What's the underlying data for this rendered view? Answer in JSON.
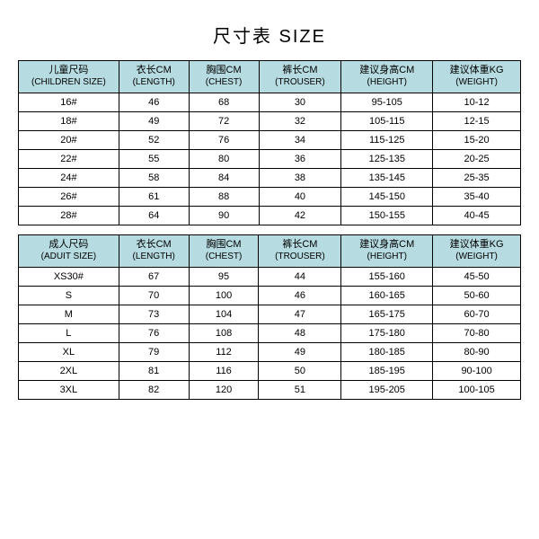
{
  "title": "尺寸表 SIZE",
  "header_bg": "#b6dbe1",
  "children": {
    "columns": [
      {
        "cn": "儿童尺码",
        "en": "(CHILDREN SIZE)"
      },
      {
        "cn": "衣长CM",
        "en": "(LENGTH)"
      },
      {
        "cn": "胸围CM",
        "en": "(CHEST)"
      },
      {
        "cn": "裤长CM",
        "en": "(TROUSER)"
      },
      {
        "cn": "建议身高CM",
        "en": "(HEIGHT)"
      },
      {
        "cn": "建议体重KG",
        "en": "(WEIGHT)"
      }
    ],
    "rows": [
      [
        "16#",
        "46",
        "68",
        "30",
        "95-105",
        "10-12"
      ],
      [
        "18#",
        "49",
        "72",
        "32",
        "105-115",
        "12-15"
      ],
      [
        "20#",
        "52",
        "76",
        "34",
        "115-125",
        "15-20"
      ],
      [
        "22#",
        "55",
        "80",
        "36",
        "125-135",
        "20-25"
      ],
      [
        "24#",
        "58",
        "84",
        "38",
        "135-145",
        "25-35"
      ],
      [
        "26#",
        "61",
        "88",
        "40",
        "145-150",
        "35-40"
      ],
      [
        "28#",
        "64",
        "90",
        "42",
        "150-155",
        "40-45"
      ]
    ]
  },
  "adult": {
    "columns": [
      {
        "cn": "成人尺码",
        "en": "(ADUIT SIZE)"
      },
      {
        "cn": "衣长CM",
        "en": "(LENGTH)"
      },
      {
        "cn": "胸围CM",
        "en": "(CHEST)"
      },
      {
        "cn": "裤长CM",
        "en": "(TROUSER)"
      },
      {
        "cn": "建议身高CM",
        "en": "(HEIGHT)"
      },
      {
        "cn": "建议体重KG",
        "en": "(WEIGHT)"
      }
    ],
    "rows": [
      [
        "XS30#",
        "67",
        "95",
        "44",
        "155-160",
        "45-50"
      ],
      [
        "S",
        "70",
        "100",
        "46",
        "160-165",
        "50-60"
      ],
      [
        "M",
        "73",
        "104",
        "47",
        "165-175",
        "60-70"
      ],
      [
        "L",
        "76",
        "108",
        "48",
        "175-180",
        "70-80"
      ],
      [
        "XL",
        "79",
        "112",
        "49",
        "180-185",
        "80-90"
      ],
      [
        "2XL",
        "81",
        "116",
        "50",
        "185-195",
        "90-100"
      ],
      [
        "3XL",
        "82",
        "120",
        "51",
        "195-205",
        "100-105"
      ]
    ]
  }
}
